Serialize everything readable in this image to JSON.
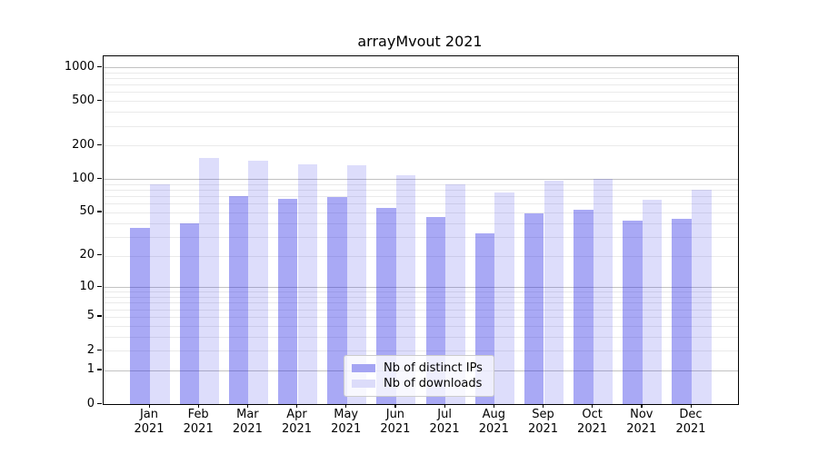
{
  "title": "arrayMvout 2021",
  "chart_data": {
    "type": "bar",
    "title": "arrayMvout 2021",
    "categories": [
      "Jan 2021",
      "Feb 2021",
      "Mar 2021",
      "Apr 2021",
      "May 2021",
      "Jun 2021",
      "Jul 2021",
      "Aug 2021",
      "Sep 2021",
      "Oct 2021",
      "Nov 2021",
      "Dec 2021"
    ],
    "series": [
      {
        "name": "Nb of distinct IPs",
        "color": "rgba(30,30,230,0.38)",
        "legend_color": "#a4a4f3",
        "values": [
          36,
          40,
          70,
          66,
          69,
          55,
          45,
          32,
          49,
          53,
          42,
          44
        ]
      },
      {
        "name": "Nb of downloads",
        "color": "rgba(30,30,230,0.15)",
        "legend_color": "#dcdcfa",
        "values": [
          90,
          155,
          145,
          135,
          134,
          108,
          90,
          75,
          96,
          100,
          65,
          80
        ]
      }
    ],
    "yscale": "log10(1+x)",
    "ylim": [
      0,
      1250
    ],
    "yticks": [
      0,
      1,
      2,
      5,
      10,
      20,
      50,
      100,
      200,
      500,
      1000
    ],
    "grid_major": [
      1,
      10,
      100,
      1000
    ],
    "grid_minor": [
      2,
      3,
      4,
      5,
      6,
      7,
      8,
      9,
      20,
      30,
      40,
      50,
      60,
      70,
      80,
      90,
      200,
      300,
      400,
      500,
      600,
      700,
      800,
      900
    ],
    "legend_position": "lower center",
    "xlabel": "",
    "ylabel": ""
  },
  "colors": {
    "major_grid": "#c2c2c2",
    "minor_grid": "#eaeaea",
    "axis": "#000000"
  }
}
